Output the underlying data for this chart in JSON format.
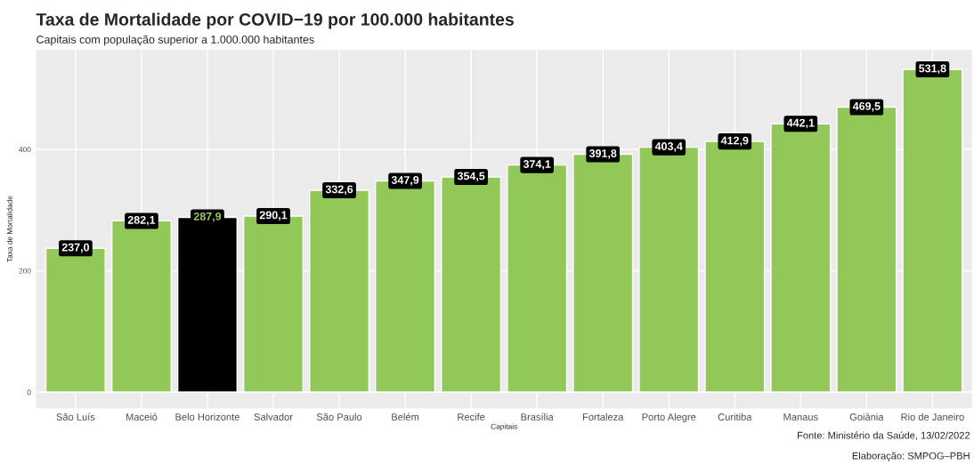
{
  "chart_data": {
    "type": "bar",
    "title": "Taxa de Mortalidade por COVID−19 por 100.000 habitantes",
    "subtitle": "Capitais com população superior a 1.000.000 habitantes",
    "xlabel": "Capitais",
    "ylabel": "Taxa de Mortalidade",
    "categories": [
      "São Luís",
      "Maceió",
      "Belo Horizonte",
      "Salvador",
      "São Paulo",
      "Belém",
      "Recife",
      "Brasília",
      "Fortaleza",
      "Porto Alegre",
      "Curitiba",
      "Manaus",
      "Goiânia",
      "Rio de Janeiro"
    ],
    "values": [
      237.0,
      282.1,
      287.9,
      290.1,
      332.6,
      347.9,
      354.5,
      374.1,
      391.8,
      403.4,
      412.9,
      442.1,
      469.5,
      531.8
    ],
    "value_labels": [
      "237,0",
      "282,1",
      "287,9",
      "290,1",
      "332,6",
      "347,9",
      "354,5",
      "374,1",
      "391,8",
      "403,4",
      "412,9",
      "442,1",
      "469,5",
      "531,8"
    ],
    "colors": [
      "#92c857",
      "#92c857",
      "#000000",
      "#92c857",
      "#92c857",
      "#92c857",
      "#92c857",
      "#92c857",
      "#92c857",
      "#92c857",
      "#92c857",
      "#92c857",
      "#92c857",
      "#92c857"
    ],
    "ylim": [
      -26.6,
      564
    ],
    "yticks": [
      0,
      200,
      400
    ],
    "grid": true,
    "annotations": [
      "Fonte: Ministério da Saúde, 13/02/2022",
      "Elaboração: SMPOG–PBH"
    ]
  }
}
